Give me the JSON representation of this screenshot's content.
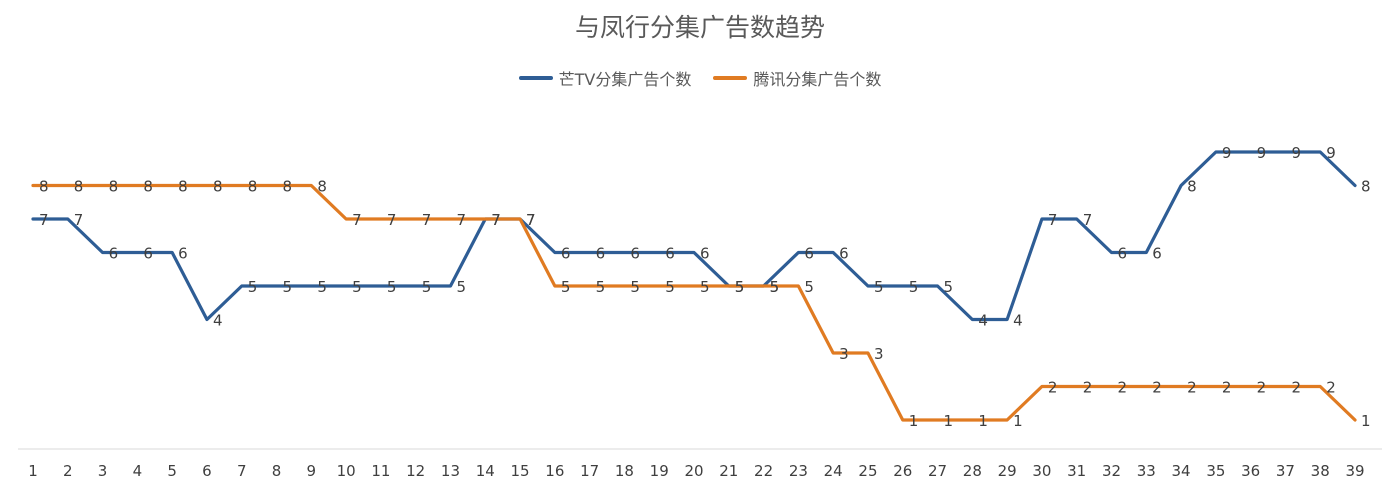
{
  "chart_data": {
    "type": "line",
    "title": "与凤行分集广告数趋势",
    "xlabel": "",
    "ylabel": "",
    "categories": [
      "1",
      "2",
      "3",
      "4",
      "5",
      "6",
      "7",
      "8",
      "9",
      "10",
      "11",
      "12",
      "13",
      "14",
      "15",
      "16",
      "17",
      "18",
      "19",
      "20",
      "21",
      "22",
      "23",
      "24",
      "25",
      "26",
      "27",
      "28",
      "29",
      "30",
      "31",
      "32",
      "33",
      "34",
      "35",
      "36",
      "37",
      "38",
      "39"
    ],
    "series": [
      {
        "name": "芒TV分集广告个数",
        "color": "#2E5D95",
        "values": [
          7,
          7,
          6,
          6,
          6,
          4,
          5,
          5,
          5,
          5,
          5,
          5,
          5,
          7,
          7,
          6,
          6,
          6,
          6,
          6,
          5,
          5,
          6,
          6,
          5,
          5,
          5,
          4,
          4,
          7,
          7,
          6,
          6,
          8,
          9,
          9,
          9,
          9,
          8
        ]
      },
      {
        "name": "腾讯分集广告个数",
        "color": "#E07B22",
        "values": [
          8,
          8,
          8,
          8,
          8,
          8,
          8,
          8,
          8,
          7,
          7,
          7,
          7,
          7,
          7,
          5,
          5,
          5,
          5,
          5,
          5,
          5,
          5,
          3,
          3,
          1,
          1,
          1,
          1,
          2,
          2,
          2,
          2,
          2,
          2,
          2,
          2,
          2,
          1
        ]
      }
    ],
    "ylim": [
      0,
      10
    ],
    "grid": false,
    "legend_position": "top"
  }
}
